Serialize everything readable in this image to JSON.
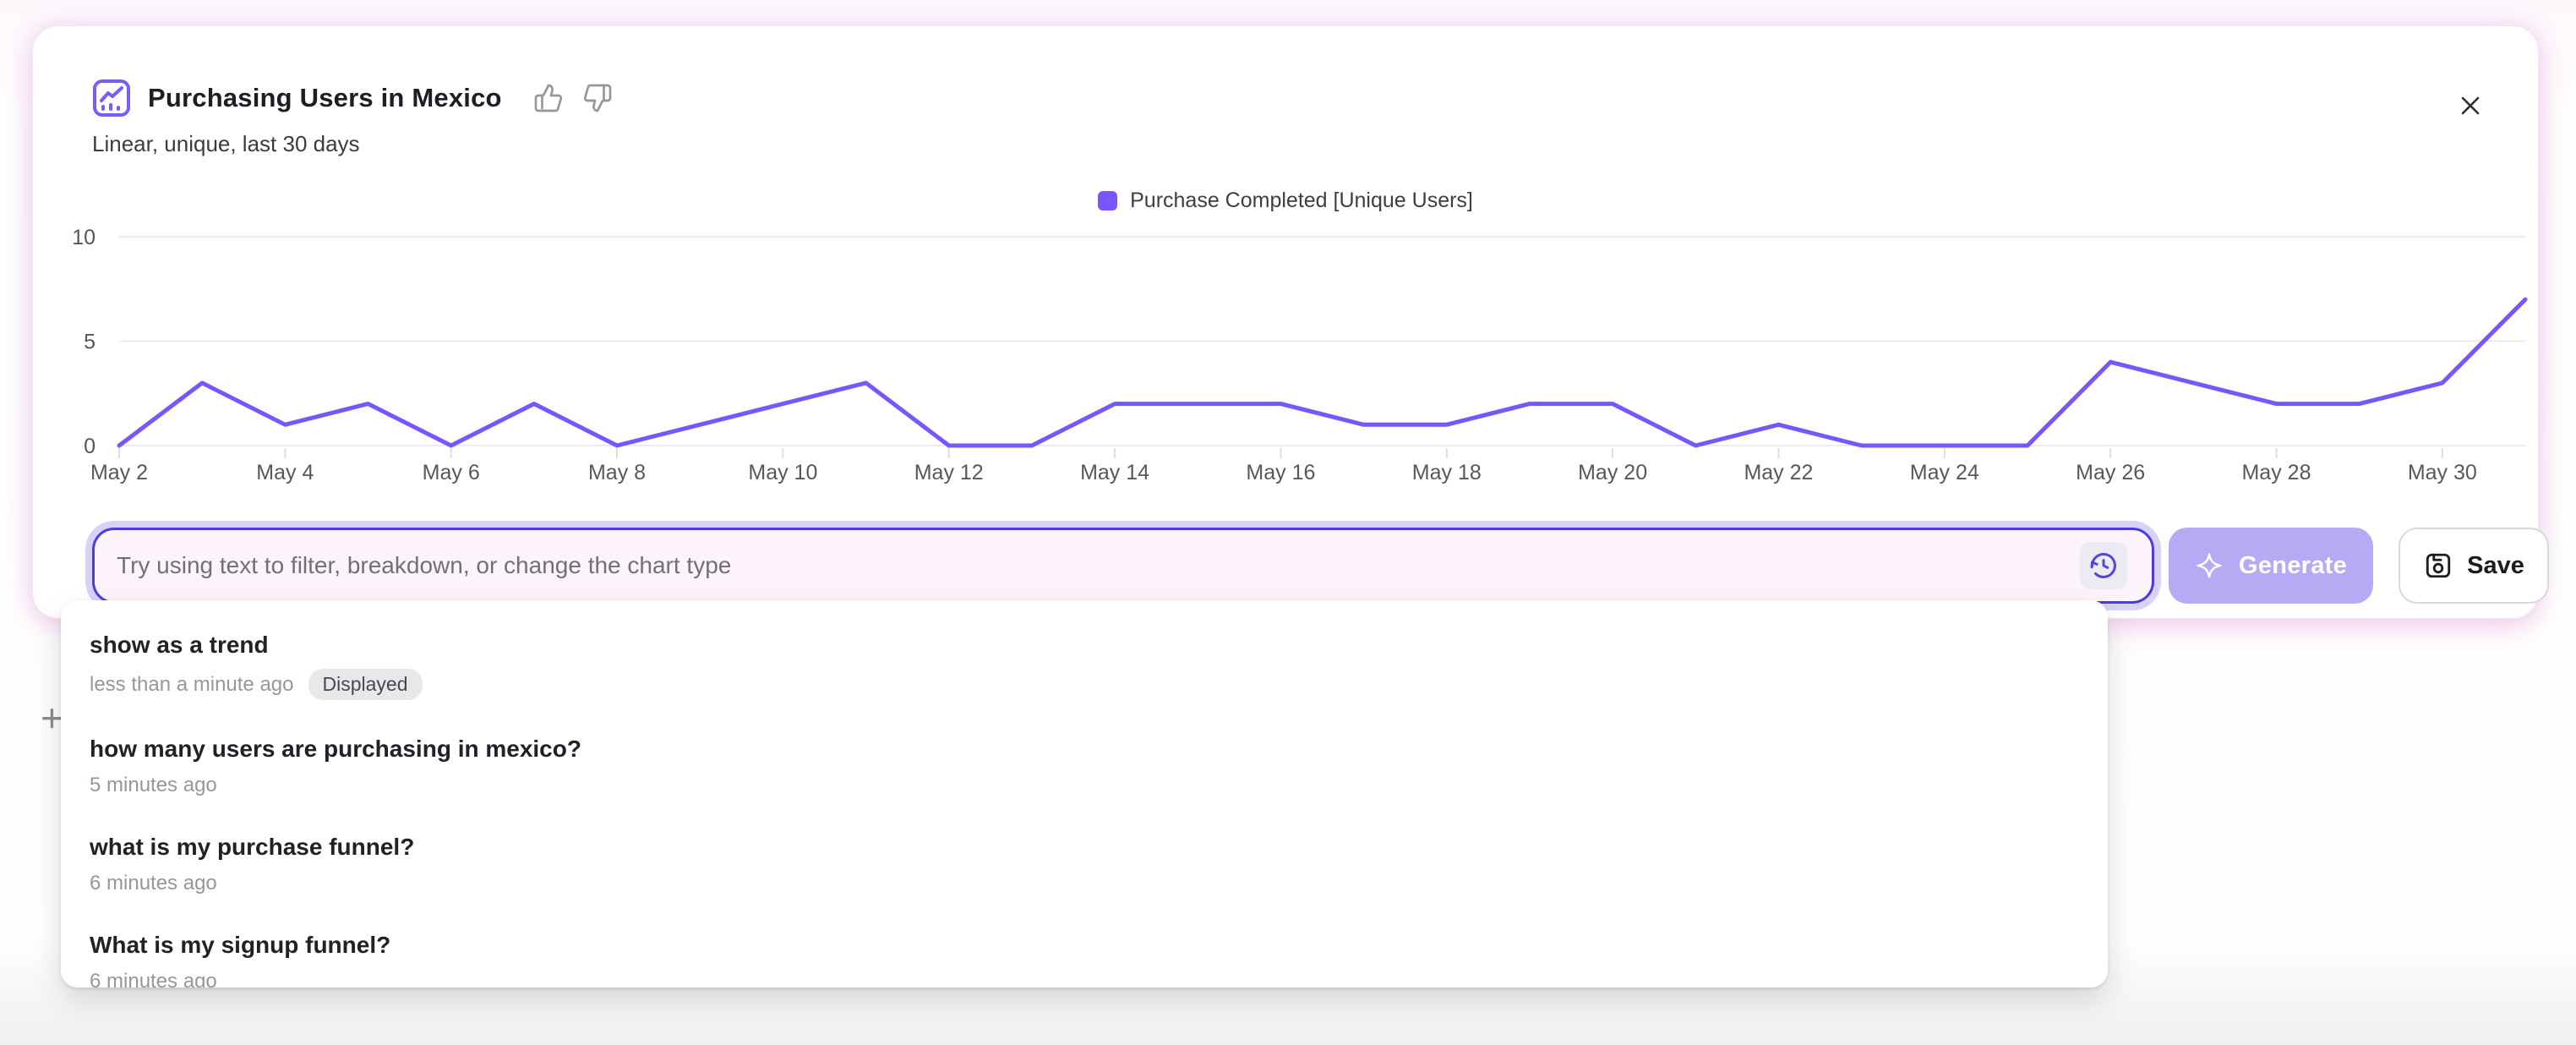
{
  "header": {
    "title": "Purchasing Users in Mexico",
    "subtitle": "Linear, unique, last 30 days"
  },
  "chart_data": {
    "type": "line",
    "title": "Purchasing Users in Mexico",
    "x": [
      "May 2",
      "May 3",
      "May 4",
      "May 5",
      "May 6",
      "May 7",
      "May 8",
      "May 9",
      "May 10",
      "May 11",
      "May 12",
      "May 13",
      "May 14",
      "May 15",
      "May 16",
      "May 17",
      "May 18",
      "May 19",
      "May 20",
      "May 21",
      "May 22",
      "May 23",
      "May 24",
      "May 25",
      "May 26",
      "May 27",
      "May 28",
      "May 29",
      "May 30",
      "May 31"
    ],
    "x_tick_every": 2,
    "series": [
      {
        "name": "Purchase Completed [Unique Users]",
        "color": "#7856ff",
        "values": [
          0,
          3,
          1,
          2,
          0,
          2,
          0,
          1,
          2,
          3,
          0,
          0,
          2,
          2,
          2,
          1,
          1,
          2,
          2,
          0,
          1,
          0,
          0,
          0,
          4,
          3,
          2,
          2,
          3,
          7
        ]
      }
    ],
    "ylim": [
      0,
      10
    ],
    "yticks": [
      0,
      5,
      10
    ],
    "grid": "horizontal",
    "legend_position": "top-center"
  },
  "query_bar": {
    "placeholder": "Try using text to filter, breakdown, or change the chart type",
    "generate_label": "Generate",
    "save_label": "Save"
  },
  "history": {
    "items": [
      {
        "query": "show as a trend",
        "time": "less than a minute ago",
        "badge": "Displayed"
      },
      {
        "query": "how many users are purchasing in mexico?",
        "time": "5 minutes ago"
      },
      {
        "query": "what is my purchase funnel?",
        "time": "6 minutes ago"
      },
      {
        "query": "What is my signup funnel?",
        "time": "6 minutes ago"
      }
    ]
  },
  "misc": {
    "plus_glyph": "+"
  }
}
